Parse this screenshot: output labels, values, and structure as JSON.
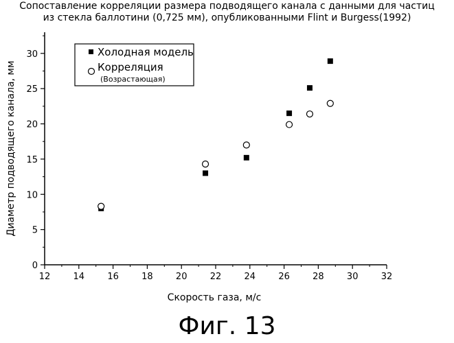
{
  "chart_data": {
    "type": "scatter",
    "title": "Сопоставление корреляции размера подводящего канала с данными для частиц",
    "subtitle": "из стекла баллотини (0,725 мм), опубликованными Flint и Burgess(1992)",
    "xlabel": "Скорость газа, м/с",
    "ylabel": "Диаметр подводящего канала, мм",
    "xlim": [
      12,
      32
    ],
    "ylim": [
      0,
      33
    ],
    "xticks": [
      12,
      14,
      16,
      18,
      20,
      22,
      24,
      26,
      28,
      30,
      32
    ],
    "yticks": [
      0,
      5,
      10,
      15,
      20,
      25,
      30
    ],
    "grid": false,
    "legend_position": "top-left",
    "series": [
      {
        "name": "Холодная модель",
        "marker": "filled-square",
        "color": "#000000",
        "points": [
          {
            "x": 15.3,
            "y": 8.0
          },
          {
            "x": 21.4,
            "y": 13.0
          },
          {
            "x": 23.8,
            "y": 15.2
          },
          {
            "x": 26.3,
            "y": 21.5
          },
          {
            "x": 27.5,
            "y": 25.1
          },
          {
            "x": 28.7,
            "y": 28.9
          }
        ]
      },
      {
        "name": "Корреляция",
        "name_sub": "(Возрастающая)",
        "marker": "open-circle",
        "color": "#000000",
        "points": [
          {
            "x": 15.3,
            "y": 8.3
          },
          {
            "x": 21.4,
            "y": 14.3
          },
          {
            "x": 23.8,
            "y": 17.0
          },
          {
            "x": 26.3,
            "y": 19.9
          },
          {
            "x": 27.5,
            "y": 21.4
          },
          {
            "x": 28.7,
            "y": 22.9
          }
        ]
      }
    ]
  },
  "figure": {
    "caption": "Фиг. 13"
  }
}
